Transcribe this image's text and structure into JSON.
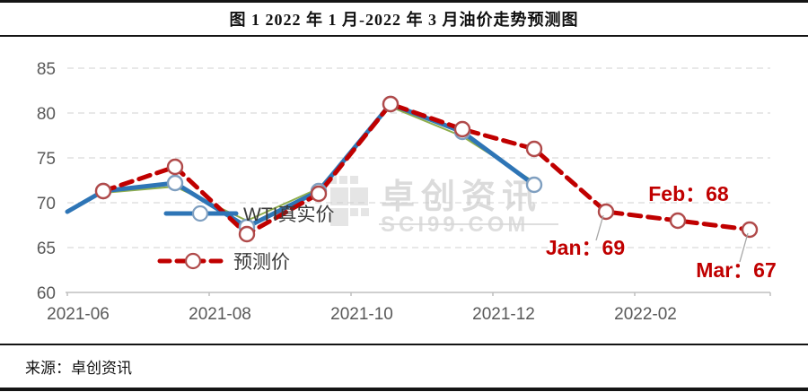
{
  "header": {
    "title": "图 1 2022 年 1 月-2022 年 3 月油价走势预测图"
  },
  "footer": {
    "source": "来源：卓创资讯"
  },
  "watermark": {
    "line1": "卓创资讯",
    "line2": "SCI99.COM"
  },
  "chart_data": {
    "type": "line",
    "title": "",
    "xlabel": "",
    "ylabel": "",
    "ylim": [
      60,
      85
    ],
    "y_ticks": [
      60,
      65,
      70,
      75,
      80,
      85
    ],
    "grid": "dashed-horizontal",
    "legend_position": "inside-left",
    "categories": [
      "2021-06",
      "2021-07",
      "2021-08",
      "2021-09",
      "2021-10",
      "2021-11",
      "2021-12",
      "2022-01",
      "2022-02",
      "2022-03"
    ],
    "x_tick_labels": [
      "2021-06",
      "2021-08",
      "2021-10",
      "2021-12",
      "2022-02"
    ],
    "series": [
      {
        "name": "WTI真实价",
        "color": "#2E75B6",
        "line_style": "solid",
        "marker": "circle",
        "marker_stroke": "#7F9FC0",
        "edge_start_value": 69,
        "values": [
          71.3,
          72.2,
          67.3,
          71.3,
          81,
          77.9,
          72,
          null,
          null,
          null
        ]
      },
      {
        "name": "预测价",
        "color": "#C00000",
        "line_style": "dashed",
        "marker": "circle",
        "marker_stroke": "#B04A4A",
        "values": [
          71.3,
          74,
          66.5,
          71,
          81,
          78.2,
          76,
          69,
          68,
          67
        ]
      },
      {
        "name": "",
        "color": "#8FAE4C",
        "line_style": "thin-solid",
        "marker": "none",
        "values": [
          71.1,
          71.8,
          68,
          71.6,
          80.7,
          77.4,
          72.3,
          null,
          null,
          null
        ]
      }
    ],
    "annotations": [
      {
        "text": "Jan：69",
        "month": "2022-01",
        "value": 69
      },
      {
        "text": "Feb：68",
        "month": "2022-02",
        "value": 68
      },
      {
        "text": "Mar：67",
        "month": "2022-03",
        "value": 67
      }
    ],
    "annotation_color": "#C00000",
    "axis_color": "#BFBFBF",
    "grid_color": "#D9D9D9",
    "tick_label_color": "#595959"
  }
}
